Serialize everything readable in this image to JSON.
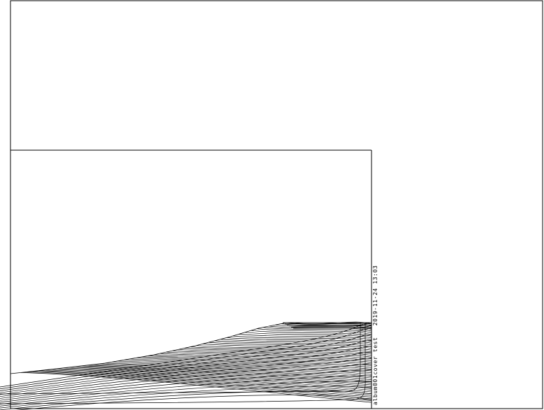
{
  "figure": {
    "caption": "album001cover test   2019-11-24 13:03",
    "line_color": "#000000",
    "background": "#ffffff"
  }
}
